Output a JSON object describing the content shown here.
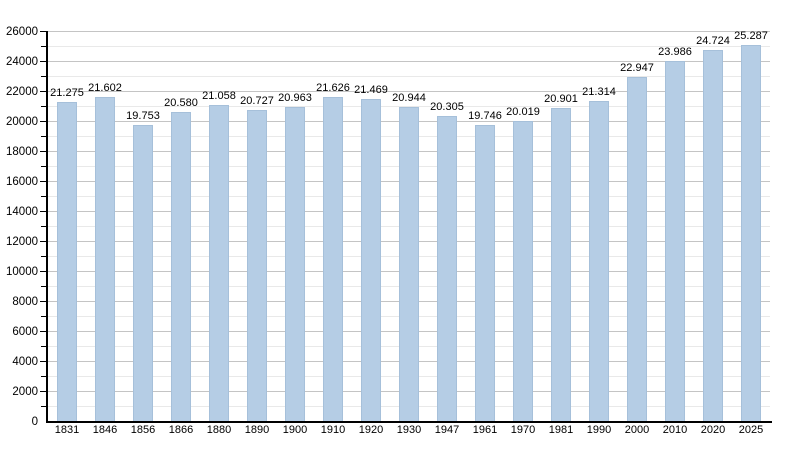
{
  "chart_data": {
    "type": "bar",
    "title": "",
    "xlabel": "",
    "ylabel": "",
    "categories": [
      "1831",
      "1846",
      "1856",
      "1866",
      "1880",
      "1890",
      "1900",
      "1910",
      "1920",
      "1930",
      "1947",
      "1961",
      "1970",
      "1981",
      "1990",
      "2000",
      "2010",
      "2020",
      "2025"
    ],
    "values": [
      21275,
      21602,
      19753,
      20580,
      21058,
      20727,
      20963,
      21626,
      21469,
      20944,
      20305,
      19746,
      20019,
      20901,
      21314,
      22947,
      23986,
      24724,
      25287
    ],
    "value_labels": [
      "21.275",
      "21.602",
      "19.753",
      "20.580",
      "21.058",
      "20.727",
      "20.963",
      "21.626",
      "21.469",
      "20.944",
      "20.305",
      "19.746",
      "20.019",
      "20.901",
      "21.314",
      "22.947",
      "23.986",
      "24.724",
      "25.287"
    ],
    "ylim": [
      0,
      26000
    ],
    "y_major_step": 2000,
    "y_minor_step": 1000,
    "y_tick_labels": [
      "0",
      "2000",
      "4000",
      "6000",
      "8000",
      "10000",
      "12000",
      "14000",
      "16000",
      "18000",
      "20000",
      "22000",
      "24000",
      "26000"
    ],
    "grid": true,
    "legend_position": "none",
    "colors": {
      "bar_fill": "#b5cde5",
      "bar_border": "#a6c0da",
      "grid_major": "#c4c4c4",
      "grid_minor": "#e9e9e9",
      "axis": "#000000",
      "text": "#000000",
      "background": "#ffffff"
    }
  }
}
